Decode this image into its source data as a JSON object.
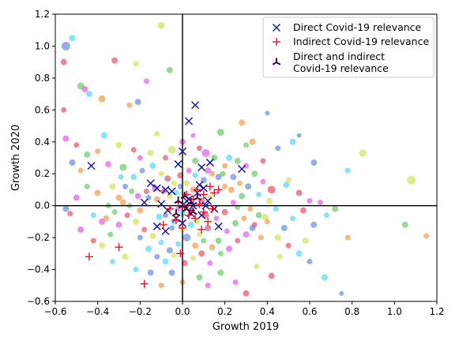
{
  "chart_data": {
    "type": "scatter",
    "xlabel": "Growth 2019",
    "ylabel": "Growth 2020",
    "xlim": [
      -0.6,
      1.2
    ],
    "ylim": [
      -0.6,
      1.2
    ],
    "xticks": [
      "−0.6",
      "−0.4",
      "−0.2",
      "0.0",
      "0.2",
      "0.4",
      "0.6",
      "0.8",
      "1.0",
      "1.2"
    ],
    "yticks": [
      "−0.6",
      "−0.4",
      "−0.2",
      "0.0",
      "0.2",
      "0.4",
      "0.6",
      "0.8",
      "1.0",
      "1.2"
    ],
    "grid": false,
    "legend_position": "top-right",
    "palette": [
      "#4f7ad6",
      "#4fc24f",
      "#e0364e",
      "#36d2f0",
      "#f08a2a",
      "#e040e0",
      "#c8e036"
    ],
    "series": [
      {
        "name": "Direct Covid-19 relevance",
        "marker": "x",
        "color": "#1a1aa0",
        "points": [
          [
            0.06,
            0.63
          ],
          [
            0.03,
            0.53
          ],
          [
            0.0,
            0.34
          ],
          [
            -0.02,
            0.26
          ],
          [
            0.13,
            0.27
          ],
          [
            0.28,
            0.23
          ],
          [
            0.09,
            0.24
          ],
          [
            -0.15,
            0.14
          ],
          [
            -0.12,
            0.11
          ],
          [
            -0.08,
            0.1
          ],
          [
            -0.05,
            0.09
          ],
          [
            0.08,
            0.13
          ],
          [
            0.1,
            0.11
          ],
          [
            0.07,
            0.08
          ],
          [
            0.12,
            0.03
          ],
          [
            -0.18,
            0.02
          ],
          [
            -0.1,
            0.01
          ],
          [
            0.02,
            0.03
          ],
          [
            0.05,
            0.0
          ],
          [
            0.15,
            -0.02
          ],
          [
            -0.07,
            -0.03
          ],
          [
            0.04,
            -0.05
          ],
          [
            0.09,
            -0.06
          ],
          [
            -0.03,
            -0.08
          ],
          [
            -0.12,
            -0.13
          ],
          [
            0.17,
            -0.13
          ],
          [
            -0.08,
            -0.16
          ],
          [
            0.0,
            -0.11
          ],
          [
            -0.43,
            0.25
          ],
          [
            0.03,
            0.04
          ],
          [
            0.11,
            0.0
          ]
        ]
      },
      {
        "name": "Indirect Covid-19 relevance",
        "marker": "plus",
        "color": "#e8102a",
        "points": [
          [
            0.13,
            0.12
          ],
          [
            0.07,
            0.1
          ],
          [
            0.1,
            0.07
          ],
          [
            0.15,
            0.08
          ],
          [
            0.17,
            0.1
          ],
          [
            0.02,
            0.07
          ],
          [
            0.05,
            0.04
          ],
          [
            -0.02,
            0.02
          ],
          [
            0.08,
            0.01
          ],
          [
            -0.06,
            -0.02
          ],
          [
            0.1,
            -0.04
          ],
          [
            0.03,
            -0.06
          ],
          [
            0.06,
            -0.08
          ],
          [
            -0.03,
            -0.09
          ],
          [
            0.12,
            -0.1
          ],
          [
            -0.09,
            -0.12
          ],
          [
            0.0,
            -0.14
          ],
          [
            0.09,
            -0.15
          ],
          [
            -0.01,
            -0.3
          ],
          [
            -0.44,
            -0.32
          ],
          [
            -0.3,
            -0.26
          ],
          [
            -0.18,
            -0.49
          ],
          [
            0.14,
            -0.02
          ],
          [
            0.04,
            -0.03
          ],
          [
            0.01,
            -0.01
          ]
        ]
      },
      {
        "name": "Direct and indirect\nCovid-19 relevance",
        "marker": "tri",
        "color": "#3a0a3a",
        "points": [
          [
            0.0,
            0.0
          ],
          [
            0.02,
            -0.02
          ],
          [
            -0.02,
            0.03
          ],
          [
            0.04,
            0.02
          ],
          [
            0.05,
            -0.04
          ],
          [
            -0.03,
            -0.05
          ],
          [
            0.07,
            0.05
          ],
          [
            0.01,
            0.06
          ]
        ]
      }
    ],
    "background_points": [
      [
        -0.55,
        1.0
      ],
      [
        -0.52,
        1.05
      ],
      [
        -0.1,
        1.13
      ],
      [
        -0.32,
        0.91
      ],
      [
        -0.22,
        0.89
      ],
      [
        -0.56,
        0.9
      ],
      [
        -0.46,
        0.73
      ],
      [
        -0.48,
        0.75
      ],
      [
        -0.17,
        0.78
      ],
      [
        -0.06,
        0.85
      ],
      [
        -0.25,
        0.63
      ],
      [
        -0.21,
        0.65
      ],
      [
        -0.38,
        0.67
      ],
      [
        0.4,
        0.58
      ],
      [
        -0.44,
        0.7
      ],
      [
        -0.12,
        0.45
      ],
      [
        -0.37,
        0.44
      ],
      [
        -0.05,
        0.35
      ],
      [
        -0.56,
        0.6
      ],
      [
        -0.55,
        0.42
      ],
      [
        -0.5,
        0.38
      ],
      [
        0.05,
        0.44
      ],
      [
        0.18,
        0.46
      ],
      [
        0.28,
        0.52
      ],
      [
        0.3,
        0.38
      ],
      [
        0.33,
        0.4
      ],
      [
        0.45,
        0.36
      ],
      [
        0.52,
        0.4
      ],
      [
        0.55,
        0.44
      ],
      [
        0.22,
        0.3
      ],
      [
        0.85,
        0.33
      ],
      [
        0.38,
        0.28
      ],
      [
        -0.3,
        0.38
      ],
      [
        -0.23,
        0.35
      ],
      [
        -0.35,
        0.26
      ],
      [
        -0.28,
        0.24
      ],
      [
        -0.2,
        0.3
      ],
      [
        -0.45,
        0.32
      ],
      [
        -0.4,
        0.34
      ],
      [
        -0.52,
        0.27
      ],
      [
        -0.48,
        0.22
      ],
      [
        0.62,
        0.27
      ],
      [
        0.78,
        0.22
      ],
      [
        1.08,
        0.16
      ],
      [
        0.49,
        0.13
      ],
      [
        0.5,
        0.16
      ],
      [
        0.55,
        0.08
      ],
      [
        0.6,
        0.03
      ],
      [
        0.57,
        -0.03
      ],
      [
        0.65,
        0.02
      ],
      [
        0.72,
        -0.02
      ],
      [
        0.78,
        -0.2
      ],
      [
        1.05,
        -0.12
      ],
      [
        1.15,
        -0.19
      ],
      [
        0.75,
        -0.55
      ],
      [
        0.67,
        -0.45
      ],
      [
        0.6,
        -0.35
      ],
      [
        0.55,
        -0.3
      ],
      [
        0.46,
        -0.32
      ],
      [
        0.42,
        -0.44
      ],
      [
        0.35,
        -0.38
      ],
      [
        0.3,
        -0.55
      ],
      [
        0.25,
        -0.48
      ],
      [
        0.18,
        -0.42
      ],
      [
        0.12,
        -0.5
      ],
      [
        0.08,
        -0.45
      ],
      [
        0.0,
        -0.48
      ],
      [
        -0.05,
        -0.42
      ],
      [
        -0.1,
        -0.5
      ],
      [
        -0.15,
        -0.42
      ],
      [
        -0.22,
        -0.4
      ],
      [
        -0.27,
        -0.32
      ],
      [
        -0.33,
        -0.35
      ],
      [
        -0.38,
        -0.25
      ],
      [
        -0.42,
        -0.22
      ],
      [
        -0.48,
        -0.15
      ],
      [
        -0.53,
        -0.05
      ],
      [
        -0.5,
        0.05
      ],
      [
        -0.45,
        0.12
      ],
      [
        -0.4,
        0.08
      ],
      [
        -0.35,
        0.0
      ],
      [
        -0.3,
        0.05
      ],
      [
        -0.27,
        0.12
      ],
      [
        -0.23,
        0.18
      ],
      [
        -0.19,
        0.22
      ],
      [
        -0.14,
        0.25
      ],
      [
        -0.1,
        0.2
      ],
      [
        -0.07,
        0.17
      ],
      [
        -0.04,
        0.14
      ],
      [
        -0.01,
        0.19
      ],
      [
        0.03,
        0.22
      ],
      [
        0.06,
        0.28
      ],
      [
        0.11,
        0.33
      ],
      [
        0.15,
        0.3
      ],
      [
        0.2,
        0.25
      ],
      [
        0.24,
        0.18
      ],
      [
        0.27,
        0.14
      ],
      [
        0.31,
        0.12
      ],
      [
        0.36,
        0.07
      ],
      [
        0.41,
        0.03
      ],
      [
        0.44,
        -0.02
      ],
      [
        0.39,
        -0.07
      ],
      [
        0.34,
        -0.12
      ],
      [
        0.3,
        -0.18
      ],
      [
        0.26,
        -0.22
      ],
      [
        0.22,
        -0.27
      ],
      [
        0.18,
        -0.3
      ],
      [
        0.14,
        -0.26
      ],
      [
        0.1,
        -0.22
      ],
      [
        0.06,
        -0.25
      ],
      [
        0.02,
        -0.2
      ],
      [
        -0.02,
        -0.24
      ],
      [
        -0.06,
        -0.28
      ],
      [
        -0.1,
        -0.23
      ],
      [
        -0.14,
        -0.19
      ],
      [
        -0.18,
        -0.15
      ],
      [
        -0.22,
        -0.1
      ],
      [
        -0.26,
        -0.06
      ],
      [
        -0.3,
        -0.12
      ],
      [
        -0.34,
        -0.18
      ],
      [
        -0.38,
        -0.1
      ],
      [
        -0.25,
        0.0
      ],
      [
        -0.2,
        -0.03
      ],
      [
        -0.16,
        0.05
      ],
      [
        -0.12,
        0.04
      ],
      [
        -0.08,
        -0.06
      ],
      [
        -0.04,
        -0.1
      ],
      [
        0.0,
        -0.15
      ],
      [
        0.04,
        -0.12
      ],
      [
        0.08,
        -0.18
      ],
      [
        0.12,
        -0.14
      ],
      [
        0.16,
        -0.08
      ],
      [
        0.2,
        -0.04
      ],
      [
        0.24,
        0.02
      ],
      [
        0.28,
        0.06
      ],
      [
        0.32,
        -0.02
      ],
      [
        0.36,
        -0.06
      ],
      [
        0.4,
        -0.1
      ],
      [
        0.48,
        -0.14
      ],
      [
        0.52,
        -0.08
      ],
      [
        0.62,
        -0.12
      ],
      [
        0.68,
        -0.06
      ],
      [
        0.58,
        -0.22
      ],
      [
        0.5,
        -0.25
      ],
      [
        0.45,
        -0.2
      ],
      [
        0.42,
        0.1
      ],
      [
        0.38,
        0.15
      ],
      [
        0.34,
        0.2
      ],
      [
        0.3,
        0.25
      ],
      [
        0.26,
        0.28
      ],
      [
        0.2,
        0.12
      ],
      [
        0.17,
        0.18
      ],
      [
        0.14,
        0.2
      ],
      [
        0.1,
        0.16
      ],
      [
        0.06,
        0.19
      ],
      [
        0.02,
        0.14
      ],
      [
        -0.03,
        0.08
      ],
      [
        -0.06,
        0.06
      ],
      [
        -0.09,
        0.09
      ],
      [
        -0.13,
        0.11
      ],
      [
        -0.17,
        0.09
      ],
      [
        -0.21,
        0.06
      ],
      [
        -0.24,
        0.09
      ],
      [
        -0.28,
        0.02
      ],
      [
        -0.32,
        -0.04
      ],
      [
        -0.36,
        -0.08
      ],
      [
        -0.2,
        -0.2
      ],
      [
        -0.16,
        -0.27
      ],
      [
        -0.12,
        -0.32
      ],
      [
        -0.08,
        -0.35
      ],
      [
        -0.04,
        -0.31
      ],
      [
        0.01,
        -0.36
      ],
      [
        0.05,
        -0.33
      ],
      [
        0.09,
        -0.3
      ],
      [
        0.13,
        -0.36
      ],
      [
        0.17,
        -0.22
      ],
      [
        0.21,
        -0.16
      ],
      [
        0.25,
        -0.11
      ],
      [
        0.29,
        -0.08
      ],
      [
        0.33,
        -0.14
      ],
      [
        0.37,
        -0.2
      ],
      [
        -0.55,
        -0.02
      ],
      [
        -0.42,
        -0.06
      ],
      [
        -0.33,
        0.12
      ],
      [
        -0.29,
        0.18
      ],
      [
        -0.15,
        0.33
      ],
      [
        -0.08,
        0.3
      ],
      [
        0.0,
        0.4
      ],
      [
        0.08,
        0.36
      ],
      [
        0.12,
        0.22
      ],
      [
        0.19,
        0.2
      ],
      [
        0.23,
        0.1
      ],
      [
        0.26,
        -0.01
      ],
      [
        0.05,
        0.1
      ],
      [
        -0.01,
        0.12
      ],
      [
        -0.11,
        -0.07
      ],
      [
        -0.05,
        -0.14
      ],
      [
        0.0,
        -0.05
      ],
      [
        0.07,
        -0.1
      ],
      [
        0.11,
        -0.06
      ],
      [
        0.13,
        0.05
      ],
      [
        0.09,
        0.03
      ],
      [
        -0.02,
        -0.02
      ]
    ],
    "background_sizes": [
      5.5,
      4,
      4.5,
      4,
      3.5,
      4,
      4,
      4.5,
      3.5,
      4,
      3.5,
      4,
      4.5,
      3,
      4,
      3.5,
      4,
      5,
      3.5,
      4,
      3.5,
      3,
      4.5,
      4,
      3.5,
      4,
      3.5,
      4,
      3,
      4,
      4.5,
      3.5,
      4,
      3.5,
      4,
      4.5,
      3.5,
      4,
      3.5,
      4,
      3.5,
      4,
      3.5,
      5.5,
      4,
      3.5,
      4,
      3.5,
      4,
      3.5,
      4,
      3.5,
      4,
      3.5,
      3,
      4,
      3.5,
      4,
      3.5,
      4,
      3.5,
      4,
      3.5,
      4,
      3.5,
      4,
      3.5,
      4,
      3.5,
      4,
      3.5,
      4,
      3.5,
      4,
      3.5,
      4,
      3.5,
      4,
      3.5,
      4,
      3.5,
      4,
      3.5,
      4,
      3.5,
      4,
      3.5,
      4,
      3.5,
      4,
      3.5,
      4,
      5,
      4,
      3.5,
      4,
      3.5,
      4,
      3.5,
      4,
      3.5,
      4,
      3.5,
      4,
      3.5,
      4,
      3.5,
      4,
      3.5,
      4,
      5,
      3.5,
      4,
      3.5,
      4,
      3.5,
      4,
      3.5,
      4,
      3.5,
      4,
      3.5,
      4,
      3.5,
      4,
      3.5,
      4,
      3.5,
      4,
      3.5,
      4,
      3.5,
      4,
      3.5,
      4,
      3.5,
      4,
      3.5,
      4,
      3.5,
      4,
      3.5,
      4,
      3.5,
      4,
      5,
      3.5,
      4,
      3.5,
      4,
      3.5,
      4,
      3.5,
      4,
      3.5,
      4,
      3.5,
      4,
      3.5,
      4,
      3.5,
      4,
      3.5,
      4,
      3.5,
      4,
      3.5,
      4,
      3.5,
      4,
      3.5,
      4,
      3.5,
      4,
      3.5,
      4,
      3.5,
      4,
      3.5,
      4,
      3.5,
      4,
      3.5,
      4,
      3.5,
      4,
      3.5,
      4,
      3.5,
      4,
      3.5,
      4,
      3.5,
      4,
      3.5,
      4,
      3.5,
      4,
      3.5,
      4,
      3.5,
      4,
      3.5,
      4,
      3.5,
      4,
      3.5,
      4,
      3.5,
      4,
      3.5,
      4
    ]
  }
}
